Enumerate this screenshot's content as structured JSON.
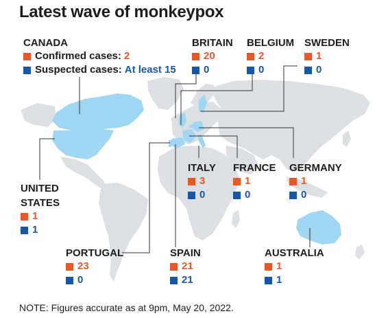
{
  "title": "Latest wave of monkeypox",
  "note": "NOTE: Figures accurate as at 9pm, May 20, 2022.",
  "colors": {
    "confirmed": "#e8572a",
    "suspected": "#1a56a6",
    "land": "#dcdfe3",
    "affected": "#9fd6f2"
  },
  "canada": {
    "name": "CANADA",
    "confirmed_label": "Confirmed cases:",
    "confirmed": "2",
    "suspected_label": "Suspected cases:",
    "suspected": "At least 15"
  },
  "countries": {
    "britain": {
      "name": "BRITAIN",
      "confirmed": "20",
      "suspected": "0"
    },
    "belgium": {
      "name": "BELGIUM",
      "confirmed": "2",
      "suspected": "0"
    },
    "sweden": {
      "name": "SWEDEN",
      "confirmed": "1",
      "suspected": "0"
    },
    "italy": {
      "name": "ITALY",
      "confirmed": "3",
      "suspected": "0"
    },
    "france": {
      "name": "FRANCE",
      "confirmed": "1",
      "suspected": "0"
    },
    "germany": {
      "name": "GERMANY",
      "confirmed": "1",
      "suspected": "0"
    },
    "us": {
      "name_line1": "UNITED",
      "name_line2": "STATES",
      "confirmed": "1",
      "suspected": "1"
    },
    "portugal": {
      "name": "PORTUGAL",
      "confirmed": "23",
      "suspected": "0"
    },
    "spain": {
      "name": "SPAIN",
      "confirmed": "21",
      "suspected": "21"
    },
    "australia": {
      "name": "AUSTRALIA",
      "confirmed": "1",
      "suspected": "1"
    }
  }
}
